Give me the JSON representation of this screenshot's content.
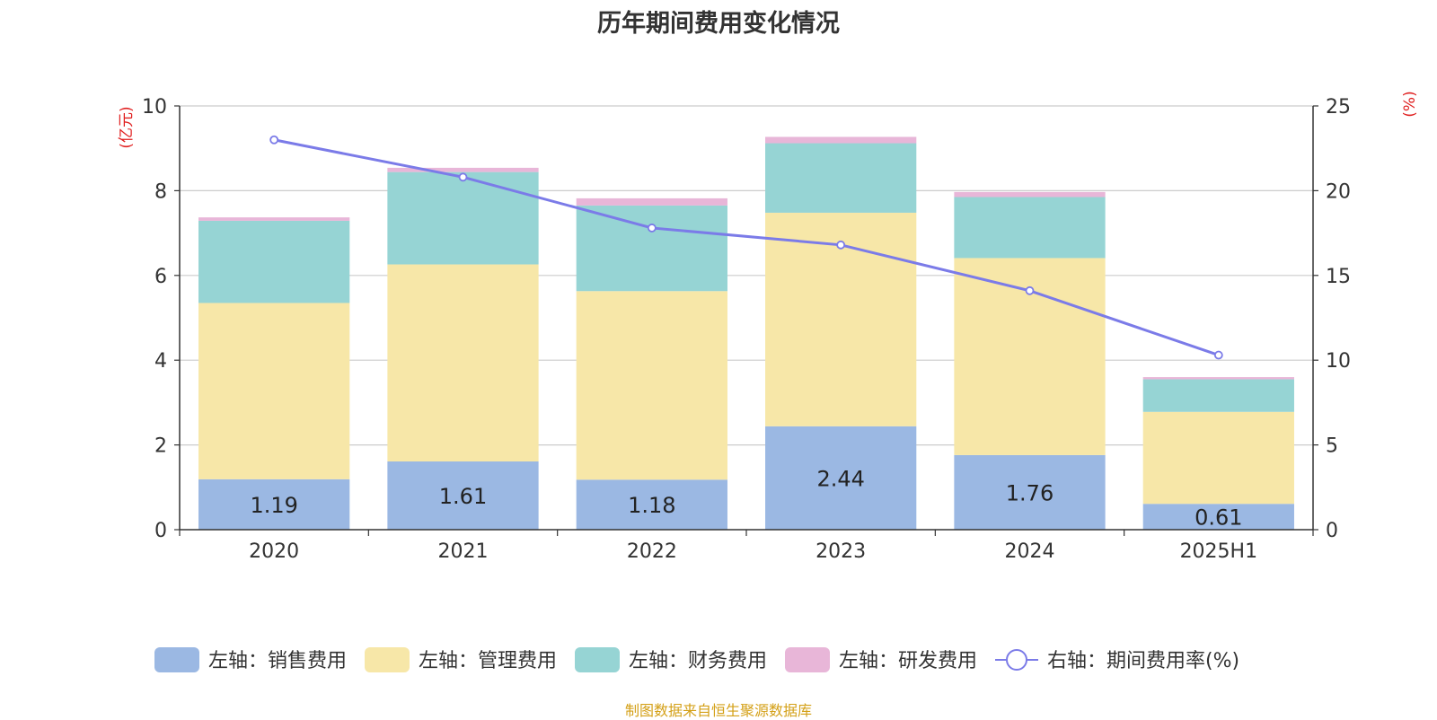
{
  "chart_data": {
    "type": "bar",
    "title": "历年期间费用变化情况",
    "categories": [
      "2020",
      "2021",
      "2022",
      "2023",
      "2024",
      "2025H1"
    ],
    "ylabel_left": "(亿元)",
    "ylabel_right": "(%)",
    "ylim_left": [
      0,
      10
    ],
    "yticks_left": [
      "0",
      "2",
      "4",
      "6",
      "8",
      "10"
    ],
    "ylim_right": [
      0,
      25
    ],
    "yticks_right": [
      "0",
      "5",
      "10",
      "15",
      "20",
      "25"
    ],
    "grid": true,
    "legend_position": "bottom",
    "series": [
      {
        "name": "左轴：销售费用",
        "type": "bar",
        "color": "#9bb8e3",
        "values": [
          1.19,
          1.61,
          1.18,
          2.44,
          1.76,
          0.61
        ],
        "labels": [
          "1.19",
          "1.61",
          "1.18",
          "2.44",
          "1.76",
          "0.61"
        ]
      },
      {
        "name": "左轴：管理费用",
        "type": "bar",
        "color": "#f7e7a8",
        "values": [
          4.16,
          4.65,
          4.45,
          5.04,
          4.65,
          2.17
        ]
      },
      {
        "name": "左轴：财务费用",
        "type": "bar",
        "color": "#96d4d4",
        "values": [
          1.94,
          2.18,
          2.02,
          1.64,
          1.44,
          0.77
        ]
      },
      {
        "name": "左轴：研发费用",
        "type": "bar",
        "color": "#e8b6d8",
        "values": [
          0.08,
          0.1,
          0.17,
          0.15,
          0.12,
          0.05
        ]
      },
      {
        "name": "右轴：期间费用率(%)",
        "type": "line",
        "axis": "right",
        "color": "#7b7be8",
        "values": [
          23.0,
          20.8,
          17.8,
          16.8,
          14.1,
          10.3
        ]
      }
    ]
  },
  "footer": {
    "source": "制图数据来自恒生聚源数据库"
  }
}
